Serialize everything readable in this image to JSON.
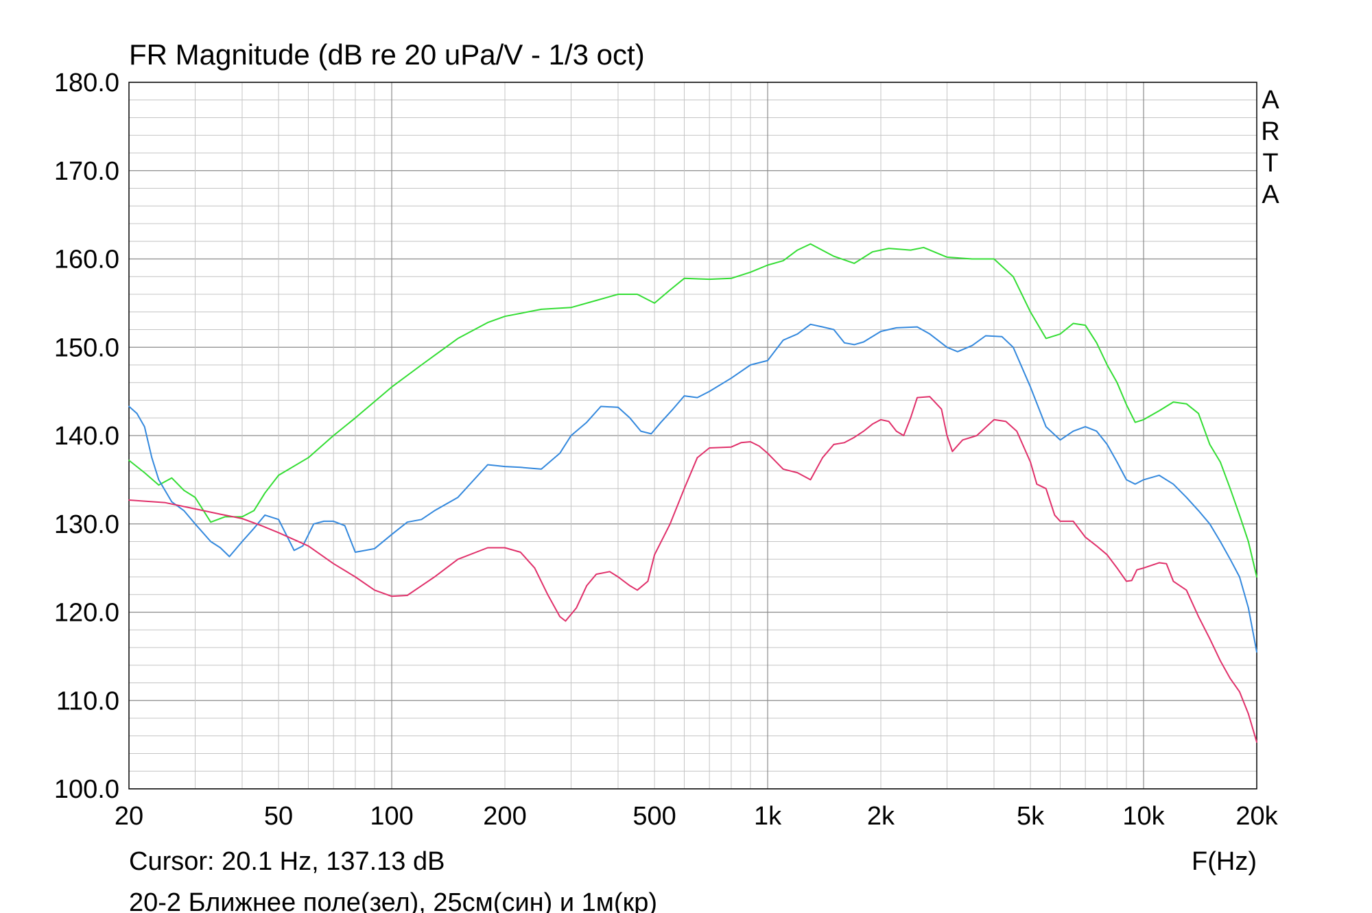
{
  "chart_data": {
    "type": "line",
    "title": "FR Magnitude (dB re 20 uPa/V - 1/3 oct)",
    "xlabel": "F(Hz)",
    "ylabel": "",
    "x_scale": "log",
    "xlim": [
      20,
      20000
    ],
    "ylim": [
      100,
      180
    ],
    "grid": true,
    "watermark": "ARTA",
    "yticks": [
      {
        "value": 100,
        "label": "100.0"
      },
      {
        "value": 110,
        "label": "110.0"
      },
      {
        "value": 120,
        "label": "120.0"
      },
      {
        "value": 130,
        "label": "130.0"
      },
      {
        "value": 140,
        "label": "140.0"
      },
      {
        "value": 150,
        "label": "150.0"
      },
      {
        "value": 160,
        "label": "160.0"
      },
      {
        "value": 170,
        "label": "170.0"
      },
      {
        "value": 180,
        "label": "180.0"
      }
    ],
    "xticks": [
      {
        "value": 20,
        "label": "20"
      },
      {
        "value": 50,
        "label": "50"
      },
      {
        "value": 100,
        "label": "100"
      },
      {
        "value": 200,
        "label": "200"
      },
      {
        "value": 500,
        "label": "500"
      },
      {
        "value": 1000,
        "label": "1k"
      },
      {
        "value": 2000,
        "label": "2k"
      },
      {
        "value": 5000,
        "label": "5k"
      },
      {
        "value": 10000,
        "label": "10k"
      },
      {
        "value": 20000,
        "label": "20k"
      }
    ],
    "cursor_text": "Cursor: 20.1 Hz, 137.13 dB",
    "caption": "20-2 Ближнее поле(зел), 25см(син) и 1м(кр)",
    "series": [
      {
        "color": "#33dd33",
        "points": [
          [
            20,
            137.2
          ],
          [
            22,
            135.8
          ],
          [
            24,
            134.4
          ],
          [
            26,
            135.2
          ],
          [
            28,
            133.8
          ],
          [
            30,
            133.0
          ],
          [
            33,
            130.2
          ],
          [
            36,
            130.8
          ],
          [
            40,
            130.8
          ],
          [
            43,
            131.5
          ],
          [
            46,
            133.5
          ],
          [
            50,
            135.5
          ],
          [
            60,
            137.5
          ],
          [
            70,
            140
          ],
          [
            80,
            142
          ],
          [
            100,
            145.5
          ],
          [
            120,
            148
          ],
          [
            150,
            151
          ],
          [
            180,
            152.8
          ],
          [
            200,
            153.5
          ],
          [
            250,
            154.3
          ],
          [
            300,
            154.5
          ],
          [
            350,
            155.3
          ],
          [
            400,
            156
          ],
          [
            450,
            156
          ],
          [
            500,
            155
          ],
          [
            550,
            156.5
          ],
          [
            600,
            157.8
          ],
          [
            700,
            157.7
          ],
          [
            800,
            157.8
          ],
          [
            900,
            158.5
          ],
          [
            1000,
            159.3
          ],
          [
            1100,
            159.8
          ],
          [
            1200,
            161
          ],
          [
            1300,
            161.7
          ],
          [
            1500,
            160.3
          ],
          [
            1700,
            159.5
          ],
          [
            1900,
            160.8
          ],
          [
            2100,
            161.2
          ],
          [
            2400,
            161
          ],
          [
            2600,
            161.3
          ],
          [
            3000,
            160.2
          ],
          [
            3500,
            160
          ],
          [
            4000,
            160
          ],
          [
            4500,
            158
          ],
          [
            5000,
            154
          ],
          [
            5500,
            151
          ],
          [
            6000,
            151.5
          ],
          [
            6500,
            152.7
          ],
          [
            7000,
            152.5
          ],
          [
            7500,
            150.5
          ],
          [
            8000,
            148
          ],
          [
            8500,
            146
          ],
          [
            9000,
            143.5
          ],
          [
            9500,
            141.5
          ],
          [
            10000,
            141.8
          ],
          [
            11000,
            142.8
          ],
          [
            12000,
            143.8
          ],
          [
            13000,
            143.6
          ],
          [
            14000,
            142.5
          ],
          [
            15000,
            139
          ],
          [
            16000,
            137
          ],
          [
            17000,
            134
          ],
          [
            18000,
            131
          ],
          [
            19000,
            128
          ],
          [
            20000,
            124
          ]
        ]
      },
      {
        "color": "#3388dd",
        "points": [
          [
            20,
            143.3
          ],
          [
            21,
            142.5
          ],
          [
            22,
            141
          ],
          [
            23,
            137.5
          ],
          [
            24,
            135
          ],
          [
            26,
            132.5
          ],
          [
            28,
            131.5
          ],
          [
            30,
            130
          ],
          [
            33,
            128
          ],
          [
            35,
            127.3
          ],
          [
            37,
            126.3
          ],
          [
            40,
            128
          ],
          [
            43,
            129.5
          ],
          [
            46,
            131
          ],
          [
            50,
            130.5
          ],
          [
            55,
            127
          ],
          [
            58,
            127.5
          ],
          [
            62,
            130
          ],
          [
            66,
            130.3
          ],
          [
            70,
            130.3
          ],
          [
            75,
            129.8
          ],
          [
            80,
            126.8
          ],
          [
            85,
            127
          ],
          [
            90,
            127.2
          ],
          [
            100,
            128.8
          ],
          [
            110,
            130.2
          ],
          [
            120,
            130.5
          ],
          [
            130,
            131.5
          ],
          [
            150,
            133
          ],
          [
            180,
            136.7
          ],
          [
            200,
            136.5
          ],
          [
            220,
            136.4
          ],
          [
            250,
            136.2
          ],
          [
            280,
            138
          ],
          [
            300,
            140
          ],
          [
            330,
            141.5
          ],
          [
            360,
            143.3
          ],
          [
            400,
            143.2
          ],
          [
            430,
            142
          ],
          [
            460,
            140.5
          ],
          [
            490,
            140.2
          ],
          [
            520,
            141.5
          ],
          [
            560,
            143
          ],
          [
            600,
            144.5
          ],
          [
            650,
            144.3
          ],
          [
            700,
            145
          ],
          [
            800,
            146.5
          ],
          [
            900,
            148
          ],
          [
            1000,
            148.5
          ],
          [
            1100,
            150.8
          ],
          [
            1200,
            151.5
          ],
          [
            1300,
            152.6
          ],
          [
            1400,
            152.3
          ],
          [
            1500,
            152
          ],
          [
            1600,
            150.5
          ],
          [
            1700,
            150.3
          ],
          [
            1800,
            150.6
          ],
          [
            2000,
            151.8
          ],
          [
            2200,
            152.2
          ],
          [
            2500,
            152.3
          ],
          [
            2700,
            151.5
          ],
          [
            3000,
            150
          ],
          [
            3200,
            149.5
          ],
          [
            3500,
            150.2
          ],
          [
            3800,
            151.3
          ],
          [
            4200,
            151.2
          ],
          [
            4500,
            150
          ],
          [
            5000,
            145.5
          ],
          [
            5500,
            141
          ],
          [
            6000,
            139.5
          ],
          [
            6500,
            140.5
          ],
          [
            7000,
            141
          ],
          [
            7500,
            140.5
          ],
          [
            8000,
            139
          ],
          [
            8500,
            137
          ],
          [
            9000,
            135
          ],
          [
            9500,
            134.5
          ],
          [
            10000,
            135
          ],
          [
            11000,
            135.5
          ],
          [
            12000,
            134.5
          ],
          [
            13000,
            133
          ],
          [
            14000,
            131.5
          ],
          [
            15000,
            130
          ],
          [
            16000,
            128
          ],
          [
            17000,
            126
          ],
          [
            18000,
            124
          ],
          [
            19000,
            120.5
          ],
          [
            20000,
            115.5
          ]
        ]
      },
      {
        "color": "#e0306a",
        "points": [
          [
            20,
            132.7
          ],
          [
            25,
            132.4
          ],
          [
            30,
            131.7
          ],
          [
            35,
            131.1
          ],
          [
            40,
            130.6
          ],
          [
            45,
            129.8
          ],
          [
            50,
            129
          ],
          [
            60,
            127.5
          ],
          [
            70,
            125.5
          ],
          [
            80,
            124
          ],
          [
            90,
            122.5
          ],
          [
            100,
            121.8
          ],
          [
            110,
            121.9
          ],
          [
            120,
            123
          ],
          [
            130,
            124
          ],
          [
            150,
            126
          ],
          [
            180,
            127.3
          ],
          [
            200,
            127.3
          ],
          [
            220,
            126.8
          ],
          [
            240,
            125
          ],
          [
            260,
            122
          ],
          [
            280,
            119.5
          ],
          [
            290,
            119
          ],
          [
            310,
            120.5
          ],
          [
            330,
            123
          ],
          [
            350,
            124.3
          ],
          [
            380,
            124.6
          ],
          [
            400,
            124
          ],
          [
            430,
            123
          ],
          [
            450,
            122.5
          ],
          [
            480,
            123.5
          ],
          [
            500,
            126.5
          ],
          [
            550,
            130
          ],
          [
            600,
            134
          ],
          [
            650,
            137.5
          ],
          [
            700,
            138.6
          ],
          [
            800,
            138.7
          ],
          [
            850,
            139.2
          ],
          [
            900,
            139.3
          ],
          [
            950,
            138.8
          ],
          [
            1000,
            138
          ],
          [
            1100,
            136.2
          ],
          [
            1200,
            135.8
          ],
          [
            1300,
            135
          ],
          [
            1400,
            137.5
          ],
          [
            1500,
            139
          ],
          [
            1600,
            139.2
          ],
          [
            1700,
            139.8
          ],
          [
            1800,
            140.5
          ],
          [
            1900,
            141.3
          ],
          [
            2000,
            141.8
          ],
          [
            2100,
            141.6
          ],
          [
            2200,
            140.5
          ],
          [
            2300,
            140
          ],
          [
            2400,
            142
          ],
          [
            2500,
            144.3
          ],
          [
            2700,
            144.4
          ],
          [
            2900,
            143
          ],
          [
            3000,
            140
          ],
          [
            3100,
            138.2
          ],
          [
            3300,
            139.5
          ],
          [
            3600,
            140
          ],
          [
            4000,
            141.8
          ],
          [
            4300,
            141.6
          ],
          [
            4600,
            140.5
          ],
          [
            5000,
            137
          ],
          [
            5200,
            134.5
          ],
          [
            5500,
            134
          ],
          [
            5800,
            131
          ],
          [
            6000,
            130.3
          ],
          [
            6500,
            130.3
          ],
          [
            7000,
            128.5
          ],
          [
            7500,
            127.5
          ],
          [
            8000,
            126.5
          ],
          [
            8500,
            125
          ],
          [
            9000,
            123.5
          ],
          [
            9300,
            123.6
          ],
          [
            9600,
            124.8
          ],
          [
            10000,
            125
          ],
          [
            11000,
            125.6
          ],
          [
            11500,
            125.5
          ],
          [
            12000,
            123.5
          ],
          [
            13000,
            122.5
          ],
          [
            14000,
            119.5
          ],
          [
            15000,
            117
          ],
          [
            16000,
            114.5
          ],
          [
            17000,
            112.5
          ],
          [
            18000,
            111
          ],
          [
            19000,
            108.5
          ],
          [
            20000,
            105.3
          ]
        ]
      }
    ]
  }
}
